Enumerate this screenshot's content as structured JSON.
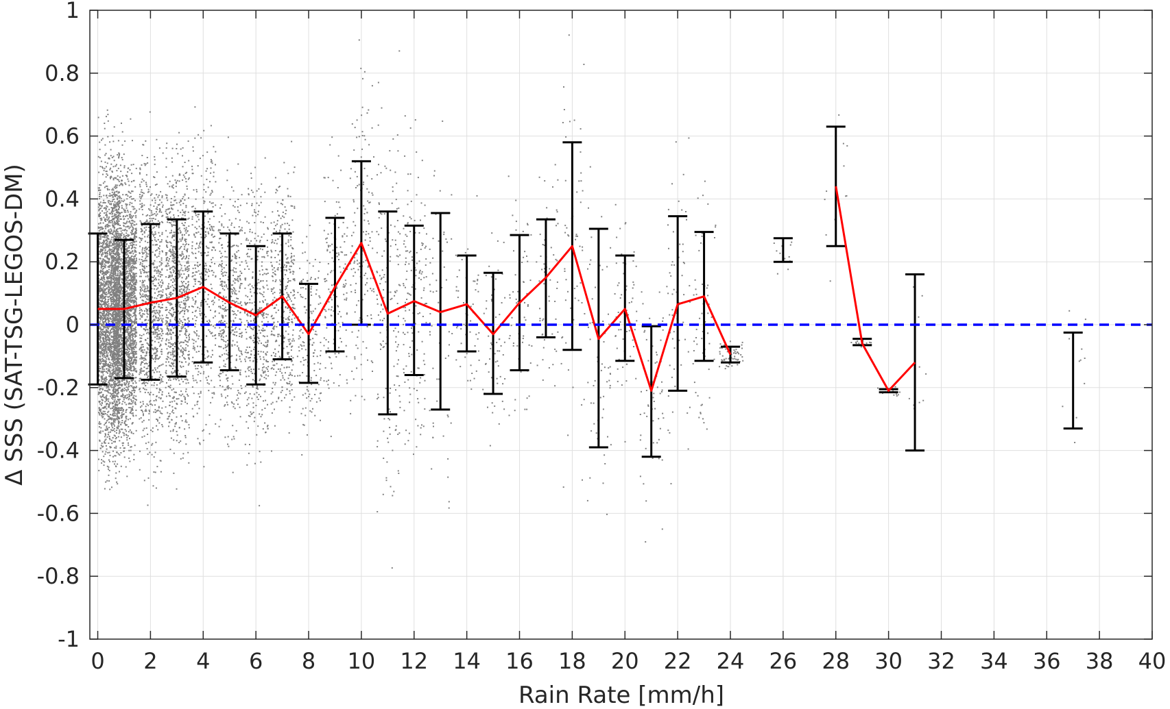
{
  "chart_data": {
    "type": "scatter",
    "xlabel": "Rain Rate [mm/h]",
    "ylabel": "Δ SSS (SAT-TSG-LEGOS-DM)",
    "xlim": [
      -0.3,
      40
    ],
    "ylim": [
      -1,
      1
    ],
    "x_ticks": [
      0,
      2,
      4,
      6,
      8,
      10,
      12,
      14,
      16,
      18,
      20,
      22,
      24,
      26,
      28,
      30,
      32,
      34,
      36,
      38,
      40
    ],
    "y_ticks": [
      -1,
      -0.8,
      -0.6,
      -0.4,
      -0.2,
      0,
      0.2,
      0.4,
      0.6,
      0.8,
      1
    ],
    "y_tick_labels": [
      "-1",
      "-0.8",
      "-0.6",
      "-0.4",
      "-0.2",
      "0",
      "0.2",
      "0.4",
      "0.6",
      "0.8",
      "1"
    ],
    "grid": true,
    "colors": {
      "scatter": "#808080",
      "mean_line": "#ff0000",
      "error_bars": "#000000",
      "zero_line": "#0000ff",
      "axes": "#262626",
      "grid": "#dfdfdf"
    },
    "series": [
      {
        "kind": "error_bars",
        "x": [
          0,
          1,
          2,
          3,
          4,
          5,
          6,
          7,
          8,
          9,
          10,
          11,
          12,
          13,
          14,
          15,
          16,
          17,
          18,
          19,
          20,
          21,
          22,
          23,
          24,
          26,
          28,
          29,
          30,
          31,
          37
        ],
        "lower": [
          -0.19,
          -0.17,
          -0.175,
          -0.165,
          -0.12,
          -0.145,
          -0.19,
          -0.11,
          -0.185,
          -0.085,
          0.0,
          -0.285,
          -0.16,
          -0.27,
          -0.085,
          -0.22,
          -0.145,
          -0.04,
          -0.08,
          -0.39,
          -0.115,
          -0.42,
          -0.21,
          -0.115,
          -0.12,
          0.2,
          0.25,
          -0.065,
          -0.215,
          -0.4,
          -0.33
        ],
        "upper": [
          0.29,
          0.27,
          0.32,
          0.335,
          0.36,
          0.29,
          0.25,
          0.29,
          0.13,
          0.34,
          0.52,
          0.36,
          0.315,
          0.355,
          0.22,
          0.165,
          0.285,
          0.335,
          0.58,
          0.305,
          0.22,
          -0.005,
          0.345,
          0.295,
          -0.07,
          0.275,
          0.63,
          -0.045,
          -0.205,
          0.16,
          -0.025
        ]
      },
      {
        "kind": "mean_line",
        "segments": [
          {
            "x": [
              0,
              1,
              2,
              3,
              4,
              5,
              6,
              7,
              8,
              9,
              10,
              11,
              12,
              13,
              14,
              15,
              16,
              17,
              18,
              19,
              20,
              21,
              22,
              23,
              24
            ],
            "y": [
              0.05,
              0.05,
              0.07,
              0.085,
              0.12,
              0.07,
              0.03,
              0.09,
              -0.03,
              0.12,
              0.26,
              0.035,
              0.075,
              0.04,
              0.065,
              -0.03,
              0.07,
              0.15,
              0.25,
              -0.045,
              0.05,
              -0.21,
              0.065,
              0.09,
              -0.095
            ]
          },
          {
            "x": [
              28,
              29,
              30,
              31
            ],
            "y": [
              0.44,
              -0.06,
              -0.21,
              -0.12
            ]
          }
        ]
      },
      {
        "kind": "zero_reference",
        "y": 0
      }
    ]
  }
}
